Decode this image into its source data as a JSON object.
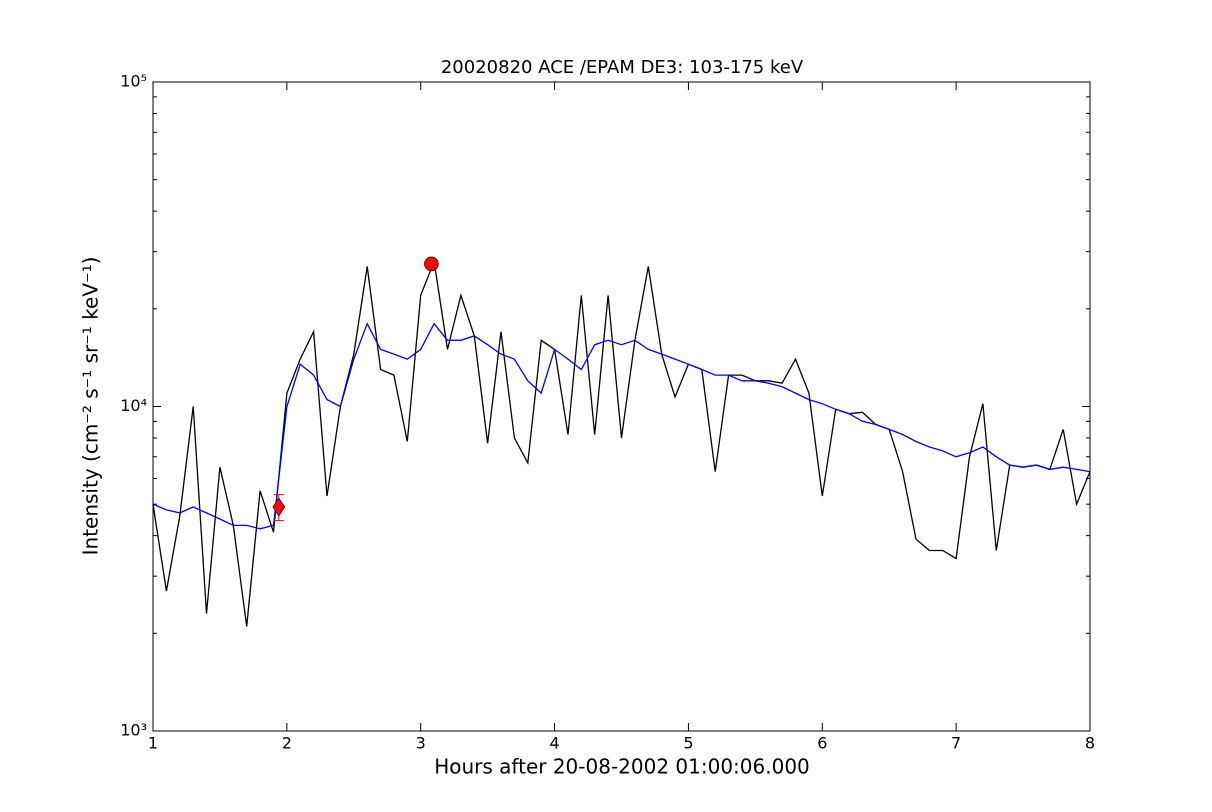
{
  "chart_data": {
    "type": "line",
    "title": "20020820 ACE /EPAM DE3: 103-175 keV",
    "xlabel": "Hours after 20-08-2002 01:00:06.000",
    "ylabel": "Intensity (cm⁻² s⁻¹ sr⁻¹ keV⁻¹)",
    "log_y": true,
    "xlim": [
      1,
      8
    ],
    "xticks": [
      1,
      2,
      3,
      4,
      5,
      6,
      7,
      8
    ],
    "ylim": [
      1000,
      100000
    ],
    "yticks": [
      {
        "value": 1000,
        "label": "10³"
      },
      {
        "value": 10000,
        "label": "10⁴"
      },
      {
        "value": 100000,
        "label": "10⁵"
      }
    ],
    "yminorticks": [
      2000,
      3000,
      4000,
      5000,
      6000,
      7000,
      8000,
      9000,
      20000,
      30000,
      40000,
      50000,
      60000,
      70000,
      80000,
      90000
    ],
    "x": [
      1,
      1.1,
      1.2,
      1.3,
      1.4,
      1.5,
      1.6,
      1.7,
      1.8,
      1.9,
      2,
      2.1,
      2.2,
      2.3,
      2.4,
      2.5,
      2.6,
      2.7,
      2.8,
      2.9,
      3,
      3.1,
      3.2,
      3.3,
      3.4,
      3.5,
      3.6,
      3.7,
      3.8,
      3.9,
      4,
      4.1,
      4.2,
      4.3,
      4.4,
      4.5,
      4.6,
      4.7,
      4.8,
      4.9,
      5,
      5.1,
      5.2,
      5.3,
      5.4,
      5.5,
      5.6,
      5.7,
      5.8,
      5.9,
      6,
      6.1,
      6.2,
      6.3,
      6.4,
      6.5,
      6.6,
      6.7,
      6.8,
      6.9,
      7,
      7.1,
      7.2,
      7.3,
      7.4,
      7.5,
      7.6,
      7.7,
      7.8,
      7.9,
      8
    ],
    "series": [
      {
        "color": "#000000",
        "values": [
          5000,
          2700,
          4600,
          10000,
          2300,
          6500,
          4300,
          2100,
          5500,
          4100,
          11000,
          14000,
          17000,
          5300,
          10000,
          14500,
          27000,
          13000,
          12500,
          7800,
          22000,
          28000,
          15000,
          22000,
          16500,
          7700,
          17000,
          8000,
          6700,
          16000,
          15000,
          8200,
          22000,
          8200,
          22000,
          8000,
          16000,
          27000,
          14500,
          10700,
          13500,
          13000,
          6300,
          12500,
          12500,
          12000,
          12000,
          11800,
          14000,
          11000,
          5300,
          9800,
          9500,
          9600,
          8800,
          8500,
          6300,
          3900,
          3600,
          3600,
          3400,
          7000,
          10200,
          3600,
          6600,
          6500,
          6600,
          6400,
          8500,
          5000,
          6300
        ]
      },
      {
        "color": "#0000ff",
        "values": [
          5000,
          4800,
          4700,
          4900,
          4700,
          4500,
          4300,
          4300,
          4200,
          4300,
          10000,
          13500,
          12500,
          10500,
          10000,
          14000,
          18000,
          15000,
          14500,
          14000,
          15000,
          18000,
          16000,
          16000,
          16500,
          15500,
          14500,
          14000,
          12000,
          11000,
          15000,
          14000,
          13000,
          15500,
          16000,
          15500,
          16000,
          15000,
          14500,
          14000,
          13500,
          13000,
          12500,
          12500,
          12000,
          12000,
          11800,
          11500,
          11000,
          10500,
          10200,
          9800,
          9500,
          9000,
          8800,
          8500,
          8200,
          7800,
          7500,
          7300,
          7000,
          7200,
          7500,
          7000,
          6600,
          6500,
          6600,
          6400,
          6500,
          6400,
          6300
        ]
      }
    ],
    "markers": [
      {
        "shape": "diamond",
        "color": "#ff0000",
        "x": 1.94,
        "y": 4900,
        "error": 450
      },
      {
        "shape": "circle",
        "color": "#ff0000",
        "x": 3.08,
        "y": 27500
      }
    ]
  }
}
